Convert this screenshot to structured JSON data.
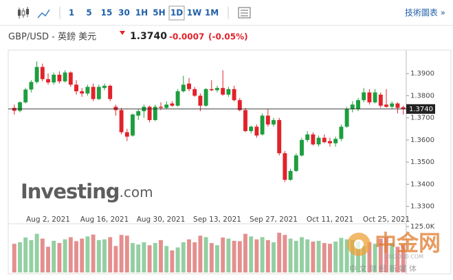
{
  "toolbar": {
    "intervals": [
      "1",
      "5",
      "15",
      "30",
      "1H",
      "5H",
      "1D",
      "1W",
      "1M"
    ],
    "active": "1D",
    "link": "技術圖表 »"
  },
  "header": {
    "symbol": "GBP/USD - 英鎊 美元",
    "price": "1.3740",
    "change": "-0.0007",
    "change_pct": "(-0.05%)"
  },
  "watermark": {
    "brand": "Investing",
    "domain": ".com"
  },
  "overlay": {
    "name": "中金网",
    "site": "CNGOLD.COM",
    "sub": "中 文 财 经 新 媒 体"
  },
  "chart_data": {
    "type": "candlestick",
    "categories": [
      null,
      null,
      null,
      null,
      null,
      null,
      "Aug 2, 2021",
      null,
      null,
      null,
      null,
      null,
      null,
      null,
      null,
      null,
      "Aug 16, 2021",
      null,
      null,
      null,
      null,
      null,
      null,
      null,
      null,
      null,
      "Aug 30, 2021",
      null,
      null,
      null,
      null,
      null,
      null,
      null,
      null,
      null,
      "Sep 13, 2021",
      null,
      null,
      null,
      null,
      null,
      null,
      null,
      null,
      null,
      "Sep 27, 2021",
      null,
      null,
      null,
      null,
      null,
      null,
      null,
      null,
      null,
      "Oct 11, 2021",
      null,
      null,
      null,
      null,
      null,
      null,
      null,
      null,
      null,
      "Oct 25, 2021",
      null,
      null,
      null
    ],
    "open": [
      1.3745,
      1.3732,
      1.377,
      1.3828,
      1.3862,
      1.393,
      1.3875,
      1.386,
      1.3895,
      1.3865,
      1.3905,
      1.385,
      1.382,
      1.381,
      1.384,
      1.3785,
      1.3835,
      1.3845,
      1.375,
      1.3735,
      1.3635,
      1.362,
      1.371,
      1.373,
      1.375,
      1.369,
      1.375,
      1.3745,
      1.3765,
      1.3755,
      1.382,
      1.3855,
      1.383,
      1.38,
      1.3755,
      1.383,
      1.3825,
      1.3835,
      1.3805,
      1.383,
      1.378,
      1.3735,
      1.364,
      1.366,
      1.3625,
      1.371,
      1.367,
      1.369,
      1.354,
      1.342,
      1.346,
      1.353,
      1.36,
      1.3625,
      1.358,
      1.361,
      1.3595,
      1.3585,
      1.3605,
      1.366,
      1.374,
      1.374,
      1.378,
      1.3815,
      1.377,
      1.3805,
      1.376,
      1.375,
      1.3765,
      1.3748
    ],
    "high": [
      1.376,
      1.3775,
      1.3835,
      1.387,
      1.3955,
      1.3945,
      1.39,
      1.3905,
      1.391,
      1.3915,
      1.391,
      1.387,
      1.3835,
      1.385,
      1.3855,
      1.385,
      1.3855,
      1.385,
      1.376,
      1.3745,
      1.365,
      1.372,
      1.374,
      1.376,
      1.3755,
      1.376,
      1.377,
      1.3775,
      1.3775,
      1.383,
      1.389,
      1.388,
      1.384,
      1.381,
      1.3835,
      1.387,
      1.3845,
      1.3915,
      1.384,
      1.3845,
      1.379,
      1.3745,
      1.3665,
      1.367,
      1.372,
      1.374,
      1.37,
      1.37,
      1.355,
      1.347,
      1.354,
      1.361,
      1.364,
      1.3635,
      1.362,
      1.3625,
      1.361,
      1.3615,
      1.367,
      1.375,
      1.3775,
      1.379,
      1.3835,
      1.383,
      1.383,
      1.3815,
      1.383,
      1.3775,
      1.377,
      1.3755
    ],
    "low": [
      1.3715,
      1.3725,
      1.3765,
      1.3815,
      1.3855,
      1.3865,
      1.385,
      1.385,
      1.3855,
      1.386,
      1.384,
      1.3805,
      1.3795,
      1.38,
      1.3775,
      1.378,
      1.3825,
      1.3775,
      1.371,
      1.3625,
      1.3595,
      1.3615,
      1.369,
      1.37,
      1.368,
      1.3685,
      1.3735,
      1.374,
      1.375,
      1.375,
      1.3815,
      1.382,
      1.3795,
      1.373,
      1.375,
      1.382,
      1.3815,
      1.38,
      1.3795,
      1.3775,
      1.373,
      1.3635,
      1.363,
      1.361,
      1.362,
      1.366,
      1.366,
      1.353,
      1.341,
      1.3415,
      1.3455,
      1.3525,
      1.359,
      1.3575,
      1.357,
      1.3585,
      1.357,
      1.357,
      1.3595,
      1.3655,
      1.3725,
      1.373,
      1.377,
      1.376,
      1.3765,
      1.3745,
      1.3745,
      1.374,
      1.372,
      1.3715
    ],
    "close": [
      1.3732,
      1.377,
      1.3828,
      1.3862,
      1.393,
      1.3875,
      1.386,
      1.3895,
      1.3865,
      1.3905,
      1.385,
      1.382,
      1.381,
      1.384,
      1.3785,
      1.384,
      1.3845,
      1.3785,
      1.3735,
      1.3635,
      1.3615,
      1.3715,
      1.373,
      1.375,
      1.369,
      1.375,
      1.3745,
      1.376,
      1.3755,
      1.382,
      1.385,
      1.383,
      1.38,
      1.3755,
      1.383,
      1.3825,
      1.3835,
      1.3805,
      1.383,
      1.378,
      1.3735,
      1.364,
      1.366,
      1.362,
      1.371,
      1.367,
      1.369,
      1.354,
      1.342,
      1.346,
      1.353,
      1.36,
      1.3625,
      1.358,
      1.361,
      1.359,
      1.3585,
      1.3605,
      1.366,
      1.374,
      1.376,
      1.378,
      1.3815,
      1.377,
      1.3815,
      1.3755,
      1.375,
      1.3765,
      1.3745,
      1.374
    ],
    "volume": [
      78000,
      82000,
      95000,
      88000,
      105000,
      92000,
      70000,
      86000,
      80000,
      90000,
      96000,
      85000,
      92000,
      98000,
      103000,
      88000,
      90000,
      96000,
      72000,
      102000,
      100000,
      80000,
      76000,
      82000,
      74000,
      80000,
      88000,
      72000,
      60000,
      68000,
      82000,
      90000,
      82000,
      100000,
      96000,
      80000,
      74000,
      95000,
      92000,
      86000,
      85000,
      105000,
      98000,
      90000,
      96000,
      88000,
      82000,
      108000,
      102000,
      92000,
      86000,
      96000,
      90000,
      84000,
      86000,
      80000,
      78000,
      84000,
      94000,
      90000,
      88000,
      84000,
      72000,
      82000,
      78000,
      92000,
      96000,
      80000,
      70000,
      76000
    ],
    "up_color": "#1e9e3e",
    "down_color": "#e2222b",
    "volume_up_color": "#93cfa2",
    "volume_down_color": "#e48f8f",
    "ylim": [
      1.324,
      1.4
    ],
    "yticks": [
      {
        "value": 1.39,
        "label": "1.3900"
      },
      {
        "value": 1.38,
        "label": "1.3800"
      },
      {
        "value": 1.37,
        "label": "1.3700"
      },
      {
        "value": 1.36,
        "label": "1.3600"
      },
      {
        "value": 1.35,
        "label": "1.3500"
      },
      {
        "value": 1.34,
        "label": "1.3400"
      },
      {
        "value": 1.33,
        "label": "1.3300"
      }
    ],
    "last_price": {
      "value": 1.374,
      "label": "1.3740"
    },
    "y2lim": [
      0,
      125000
    ],
    "y2ticks": [
      {
        "value": 125000,
        "label": "125.0K"
      }
    ],
    "grid": false
  }
}
